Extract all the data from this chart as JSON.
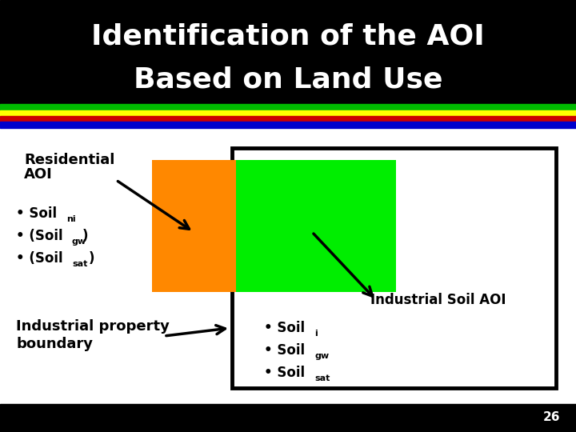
{
  "title_line1": "Identification of the AOI",
  "title_line2": "Based on Land Use",
  "title_bg": "#000000",
  "title_fg": "#ffffff",
  "slide_bg": "#ffffff",
  "page_number": "26",
  "footer_bg": "#000000",
  "footer_fg": "#ffffff",
  "fig_w": 7.2,
  "fig_h": 5.4,
  "dpi": 100
}
